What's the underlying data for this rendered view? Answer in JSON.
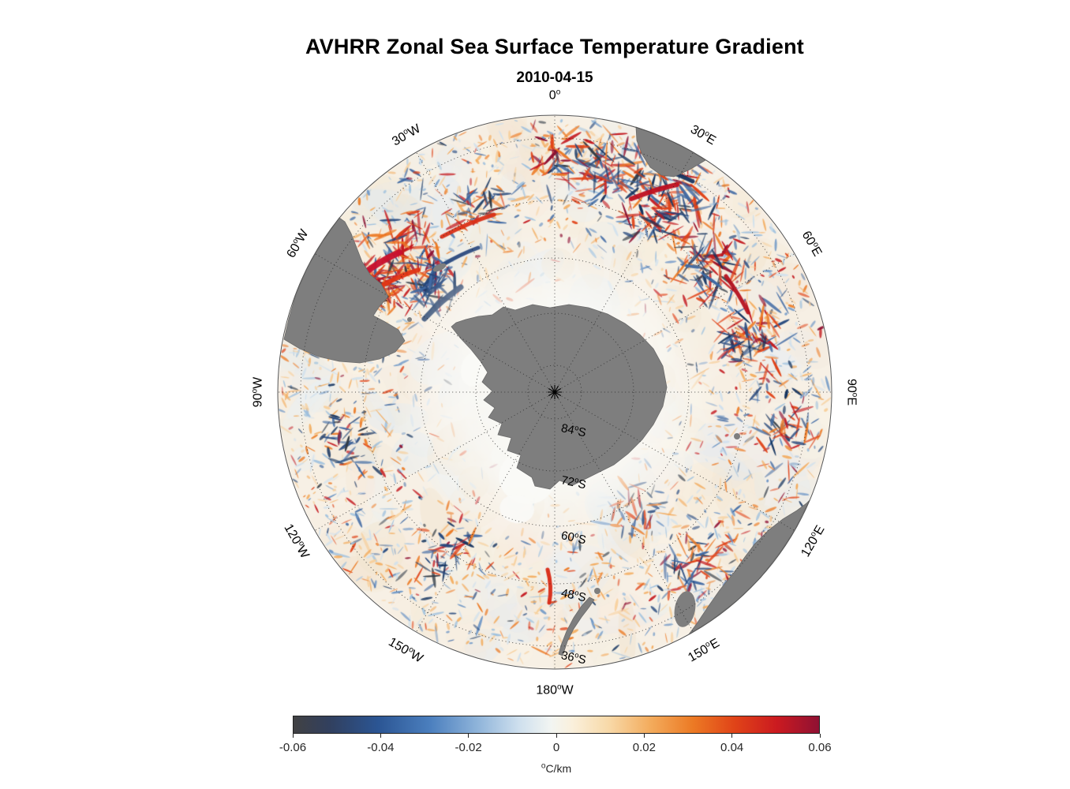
{
  "title": "AVHRR Zonal Sea Surface Temperature Gradient",
  "subtitle": "2010-04-15",
  "colors": {
    "background": "#ffffff",
    "land": "#7e7e7e",
    "land_edge": "#6b6b6b",
    "graticule": "#2a2a2a",
    "text": "#000000"
  },
  "chart_data": {
    "type": "heatmap",
    "projection": "south polar stereographic",
    "title": "AVHRR Zonal Sea Surface Temperature Gradient",
    "date": "2010-04-15",
    "units": "°C/km",
    "units_display": {
      "sup": "o",
      "rest": "C/km"
    },
    "degree_glyph": "o",
    "value_range": [
      -0.06,
      0.06
    ],
    "colorbar": {
      "min": -0.06,
      "max": 0.06,
      "orientation": "horizontal",
      "tick_labels": [
        "-0.06",
        "-0.04",
        "-0.02",
        "0",
        "0.02",
        "0.04",
        "0.06"
      ],
      "stops": [
        {
          "pos": 0.0,
          "color": "#414143"
        },
        {
          "pos": 0.07,
          "color": "#31405f"
        },
        {
          "pos": 0.16,
          "color": "#2b5593"
        },
        {
          "pos": 0.26,
          "color": "#4b7fbe"
        },
        {
          "pos": 0.35,
          "color": "#8fb4da"
        },
        {
          "pos": 0.43,
          "color": "#cfe0ee"
        },
        {
          "pos": 0.49,
          "color": "#f2f5f2"
        },
        {
          "pos": 0.53,
          "color": "#faf0dc"
        },
        {
          "pos": 0.6,
          "color": "#f8d9a8"
        },
        {
          "pos": 0.68,
          "color": "#f3ab5c"
        },
        {
          "pos": 0.76,
          "color": "#ec7a24"
        },
        {
          "pos": 0.84,
          "color": "#e04318"
        },
        {
          "pos": 0.92,
          "color": "#cb1a20"
        },
        {
          "pos": 1.0,
          "color": "#8f1133"
        }
      ]
    },
    "longitude_labels": [
      {
        "num": "0",
        "hemi": "",
        "lon": 0
      },
      {
        "num": "30",
        "hemi": "E",
        "lon": 30
      },
      {
        "num": "60",
        "hemi": "E",
        "lon": 60
      },
      {
        "num": "90",
        "hemi": "E",
        "lon": 90
      },
      {
        "num": "120",
        "hemi": "E",
        "lon": 120
      },
      {
        "num": "150",
        "hemi": "E",
        "lon": 150
      },
      {
        "num": "180",
        "hemi": "W",
        "lon": 180
      },
      {
        "num": "150",
        "hemi": "W",
        "lon": -150
      },
      {
        "num": "120",
        "hemi": "W",
        "lon": -120
      },
      {
        "num": "90",
        "hemi": "W",
        "lon": -90
      },
      {
        "num": "60",
        "hemi": "W",
        "lon": -60
      },
      {
        "num": "30",
        "hemi": "W",
        "lon": -30
      }
    ],
    "latitude_labels": [
      {
        "num": "84",
        "hemi": "S",
        "lat": -84
      },
      {
        "num": "72",
        "hemi": "S",
        "lat": -72
      },
      {
        "num": "60",
        "hemi": "S",
        "lat": -60
      },
      {
        "num": "48",
        "hemi": "S",
        "lat": -48
      },
      {
        "num": "36",
        "hemi": "S",
        "lat": -36
      }
    ]
  }
}
